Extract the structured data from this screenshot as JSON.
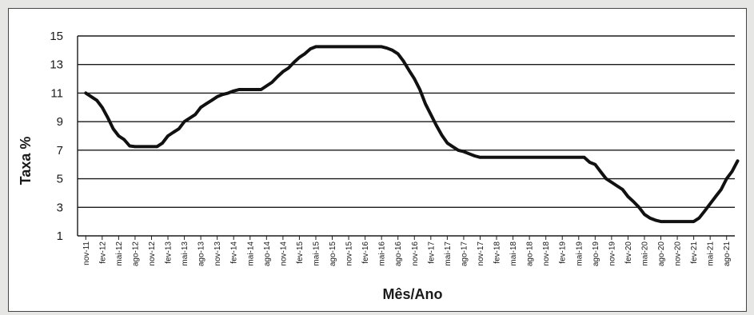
{
  "chart_data": {
    "type": "line",
    "title": "",
    "xlabel": "Mês/Ano",
    "ylabel": "Taxa %",
    "ylim": [
      1,
      15
    ],
    "yticks": [
      1,
      3,
      5,
      7,
      9,
      11,
      13,
      15
    ],
    "grid": true,
    "legend": "none",
    "line_color": "#111111",
    "grid_color": "#1a1a1a",
    "categories": [
      "nov-11",
      "fev-12",
      "mai-12",
      "ago-12",
      "nov-12",
      "fev-13",
      "mai-13",
      "ago-13",
      "nov-13",
      "fev-14",
      "mai-14",
      "ago-14",
      "nov-14",
      "fev-15",
      "mai-15",
      "ago-15",
      "nov-15",
      "fev-16",
      "mai-16",
      "ago-16",
      "nov-16",
      "fev-17",
      "mai-17",
      "ago-17",
      "nov-17",
      "fev-18",
      "mai-18",
      "ago-18",
      "nov-18",
      "fev-19",
      "mai-19",
      "ago-19",
      "nov-19",
      "fev-20",
      "mai-20",
      "ago-20",
      "nov-20",
      "fev-21",
      "mai-21",
      "ago-21"
    ],
    "series": [
      {
        "name": "",
        "x": [
          0,
          0.33,
          0.67,
          1,
          1.33,
          1.67,
          2,
          2.33,
          2.67,
          3,
          3.33,
          3.67,
          4,
          4.33,
          4.67,
          5,
          5.33,
          5.67,
          6,
          6.33,
          6.67,
          7,
          7.33,
          7.67,
          8,
          8.33,
          8.67,
          9,
          9.33,
          9.67,
          10,
          10.33,
          10.67,
          11,
          11.33,
          11.67,
          12,
          12.33,
          12.67,
          13,
          13.33,
          13.67,
          14,
          14.33,
          14.67,
          15,
          15.33,
          15.67,
          16,
          16.33,
          16.67,
          17,
          17.33,
          17.67,
          18,
          18.33,
          18.67,
          19,
          19.33,
          19.67,
          20,
          20.33,
          20.67,
          21,
          21.33,
          21.67,
          22,
          22.33,
          22.67,
          23,
          23.33,
          23.67,
          24,
          24.33,
          24.67,
          25,
          25.33,
          25.67,
          26,
          26.33,
          26.67,
          27,
          27.33,
          27.67,
          28,
          28.33,
          28.67,
          29,
          29.33,
          29.67,
          30,
          30.33,
          30.67,
          31,
          31.33,
          31.67,
          32,
          32.33,
          32.67,
          33,
          33.33,
          33.67,
          34,
          34.33,
          34.67,
          35,
          35.33,
          35.67,
          36,
          36.33,
          36.67,
          37,
          37.33,
          37.67,
          38,
          38.33,
          38.67,
          39,
          39.33,
          39.67
        ],
        "values": [
          11,
          10.75,
          10.5,
          10,
          9.3,
          8.5,
          8,
          7.75,
          7.3,
          7.25,
          7.25,
          7.25,
          7.25,
          7.25,
          7.5,
          8,
          8.25,
          8.5,
          9,
          9.25,
          9.5,
          10,
          10.25,
          10.5,
          10.75,
          10.9,
          11,
          11.15,
          11.25,
          11.25,
          11.25,
          11.25,
          11.25,
          11.5,
          11.75,
          12.15,
          12.5,
          12.75,
          13.15,
          13.5,
          13.75,
          14.1,
          14.25,
          14.25,
          14.25,
          14.25,
          14.25,
          14.25,
          14.25,
          14.25,
          14.25,
          14.25,
          14.25,
          14.25,
          14.25,
          14.15,
          14,
          13.75,
          13.25,
          12.6,
          12,
          11.25,
          10.25,
          9.5,
          8.75,
          8.05,
          7.5,
          7.25,
          7,
          6.9,
          6.75,
          6.6,
          6.5,
          6.5,
          6.5,
          6.5,
          6.5,
          6.5,
          6.5,
          6.5,
          6.5,
          6.5,
          6.5,
          6.5,
          6.5,
          6.5,
          6.5,
          6.5,
          6.5,
          6.5,
          6.5,
          6.5,
          6.15,
          6,
          5.5,
          5,
          4.75,
          4.5,
          4.25,
          3.75,
          3.4,
          3,
          2.5,
          2.25,
          2.1,
          2,
          2,
          2,
          2,
          2,
          2,
          2,
          2.25,
          2.75,
          3.25,
          3.75,
          4.25,
          5,
          5.5,
          6.25
        ]
      }
    ]
  }
}
